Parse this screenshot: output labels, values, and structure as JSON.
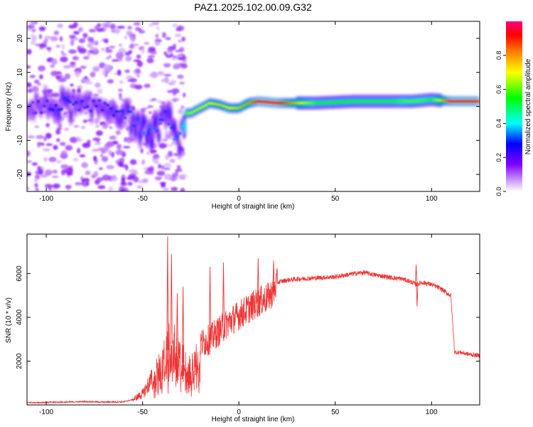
{
  "page_title": "PAZ1.2025.102.00.09.G32",
  "chart_data": [
    {
      "type": "heatmap",
      "title": "PAZ1.2025.102.00.09.G32",
      "xlabel": "Height of straight line (km)",
      "ylabel": "Frequency (Hz)",
      "xlim": [
        -110,
        125
      ],
      "ylim": [
        -25,
        25
      ],
      "x_ticks": [
        -100,
        -50,
        0,
        50,
        100
      ],
      "x_tick_labels": [
        "-100",
        "-50",
        "0",
        "50",
        "100"
      ],
      "y_ticks": [
        -20,
        -10,
        0,
        10,
        20
      ],
      "y_tick_labels": [
        "-20",
        "-10",
        "0",
        "10",
        "20"
      ],
      "colorbar": {
        "label": "Normalized spectral amplitude",
        "range": [
          0,
          1
        ],
        "ticks": [
          0.0,
          0.2,
          0.4,
          0.6,
          0.8
        ],
        "tick_labels": [
          "0.0",
          "0.2",
          "0.4",
          "0.6",
          "0.8"
        ],
        "colors": [
          "#ffffff",
          "#c080ff",
          "#8000ff",
          "#0000ff",
          "#00ffff",
          "#00ff00",
          "#ffff00",
          "#ff8000",
          "#ff0000",
          "#ff0080"
        ]
      },
      "ridge": {
        "description_free": true,
        "x": [
          -110,
          -100,
          -90,
          -80,
          -70,
          -60,
          -55,
          -50,
          -45,
          -42,
          -40,
          -37,
          -35,
          -33,
          -30,
          -28,
          -25,
          -20,
          -15,
          -10,
          -5,
          0,
          5,
          10,
          20,
          40,
          60,
          80,
          90,
          100,
          110,
          125
        ],
        "freq": [
          -1,
          0,
          0.5,
          -0.5,
          0,
          -2,
          -4,
          -7,
          -8,
          -7,
          -2,
          -3,
          -6,
          -9,
          -10,
          -2,
          -2,
          -0.5,
          1,
          0.5,
          -0.5,
          -0.5,
          1,
          1.5,
          1,
          1,
          1.5,
          1.5,
          1.5,
          2,
          1.5,
          1.5
        ],
        "amplitude": [
          0.2,
          0.25,
          0.3,
          0.25,
          0.25,
          0.3,
          0.3,
          0.35,
          0.35,
          0.3,
          0.3,
          0.3,
          0.3,
          0.35,
          0.3,
          0.6,
          0.65,
          0.7,
          0.7,
          0.75,
          0.7,
          0.75,
          0.8,
          0.95,
          0.95,
          0.55,
          0.55,
          0.55,
          0.6,
          0.55,
          0.95,
          0.95
        ]
      }
    },
    {
      "type": "line",
      "xlabel": "Height of straight line (km)",
      "ylabel": "SNR (10 * v/v)",
      "xlim": [
        -110,
        125
      ],
      "ylim": [
        0,
        7800
      ],
      "x_ticks": [
        -100,
        -50,
        0,
        50,
        100
      ],
      "x_tick_labels": [
        "-100",
        "-50",
        "0",
        "50",
        "100"
      ],
      "y_ticks": [
        2000,
        4000,
        6000
      ],
      "y_tick_labels": [
        "2000",
        "4000",
        "6000"
      ],
      "color": "#ee3333",
      "x": [
        -110,
        -100,
        -90,
        -80,
        -70,
        -60,
        -55,
        -50,
        -45,
        -40,
        -37,
        -35,
        -32,
        -30,
        -27,
        -25,
        -20,
        -15,
        -10,
        -5,
        0,
        5,
        10,
        15,
        18,
        20,
        25,
        30,
        40,
        50,
        60,
        65,
        70,
        80,
        85,
        90,
        92,
        95,
        100,
        105,
        108,
        110,
        112,
        115,
        120,
        125
      ],
      "y": [
        100,
        120,
        130,
        150,
        130,
        140,
        250,
        500,
        1200,
        1800,
        2500,
        2800,
        2300,
        2000,
        1800,
        1500,
        2800,
        3000,
        3400,
        3800,
        4100,
        4400,
        4700,
        4900,
        5200,
        5600,
        5700,
        5750,
        5800,
        5850,
        6000,
        6050,
        5950,
        5800,
        5750,
        5600,
        5500,
        5600,
        5500,
        5300,
        5100,
        5000,
        2400,
        2400,
        2300,
        2250
      ],
      "spikes": [
        {
          "x": -37,
          "y": 7700
        },
        {
          "x": -35,
          "y": 6900
        },
        {
          "x": -32,
          "y": 5100
        },
        {
          "x": -29,
          "y": 5400
        },
        {
          "x": -15,
          "y": 6300
        },
        {
          "x": -8,
          "y": 6500
        },
        {
          "x": 10,
          "y": 6700
        },
        {
          "x": 18,
          "y": 6600
        },
        {
          "x": 92,
          "y": 6400
        },
        {
          "x": 92.5,
          "y": 4500
        }
      ]
    }
  ]
}
